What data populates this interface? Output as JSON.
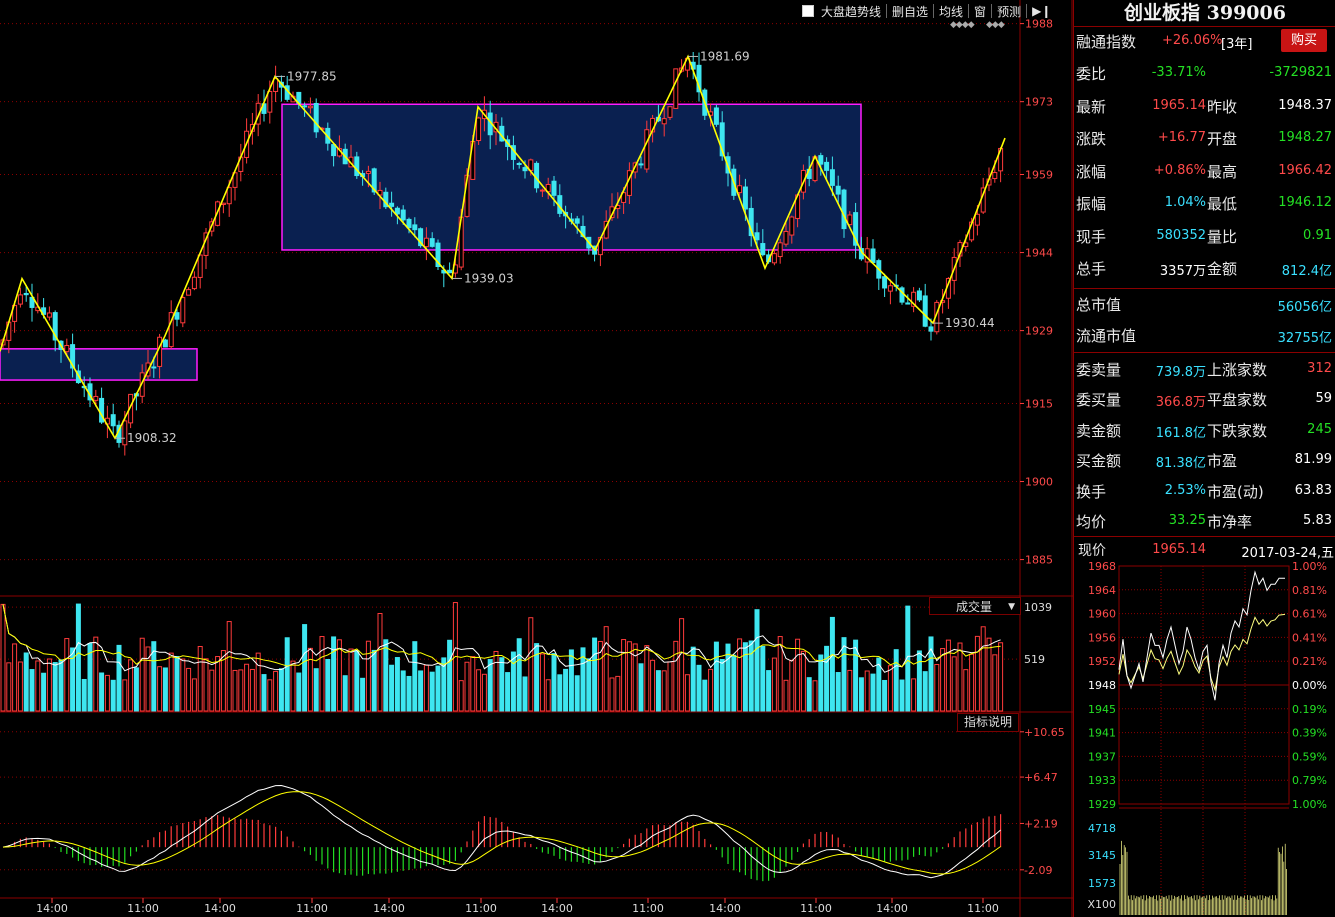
{
  "toolbar": {
    "items": [
      "大盘趋势线",
      "删自选",
      "均线",
      "窗",
      "预测"
    ],
    "nav_icon": "skip-arrow-icon"
  },
  "main_chart": {
    "price_axis": [
      "1988",
      "1973",
      "1959",
      "1944",
      "1929",
      "1915",
      "1900",
      "1885"
    ],
    "price_range": [
      1878,
      1991
    ],
    "pivot_labels": [
      {
        "text": "1977.85",
        "value": 1977.85
      },
      {
        "text": "1981.69",
        "value": 1981.69
      },
      {
        "text": "1939.03",
        "value": 1939.03
      },
      {
        "text": "1930.44",
        "value": 1930.44
      },
      {
        "text": "1908.32",
        "value": 1908.32
      }
    ],
    "colors": {
      "up": "#ff3b3b",
      "down": "#3ee6f0",
      "trend": "#ffff00",
      "box_border": "#ff1cff",
      "box_fill": "#0a2050",
      "grid": "#8b0000"
    }
  },
  "volume": {
    "selector_label": "成交量",
    "axis": [
      "1039",
      "519"
    ],
    "range": [
      0,
      1110
    ]
  },
  "indicator": {
    "button_label": "指标说明",
    "axis": [
      "+10.65",
      "+6.47",
      "+2.19",
      "-2.09"
    ],
    "range": [
      -4.6,
      12.2
    ]
  },
  "time_axis": [
    "14:00",
    "11:00",
    "14:00",
    "11:00",
    "14:00",
    "11:00",
    "14:00",
    "11:00",
    "14:00",
    "11:00",
    "14:00",
    "11:00"
  ],
  "quote_panel": {
    "title": "创业板指 399006",
    "margin_label": "融通指数",
    "margin_value": "+26.06%",
    "margin_period": "[3年]",
    "buy_button": "购买",
    "rows": [
      {
        "label": "委比",
        "v1": "-33.71%",
        "v2": "-3729821",
        "c1": "green",
        "c2": "green"
      },
      {
        "label": "最新",
        "v1": "1965.14",
        "label2": "昨收",
        "v2": "1948.37",
        "c1": "red",
        "c2": "white"
      },
      {
        "label": "涨跌",
        "v1": "+16.77",
        "label2": "开盘",
        "v2": "1948.27",
        "c1": "red",
        "c2": "green"
      },
      {
        "label": "涨幅",
        "v1": "+0.86%",
        "label2": "最高",
        "v2": "1966.42",
        "c1": "red",
        "c2": "red"
      },
      {
        "label": "振幅",
        "v1": "1.04%",
        "label2": "最低",
        "v2": "1946.12",
        "c1": "cyan",
        "c2": "green"
      },
      {
        "label": "现手",
        "v1": "580352",
        "label2": "量比",
        "v2": "0.91",
        "c1": "cyan",
        "c2": "green"
      },
      {
        "label": "总手",
        "v1": "3357万",
        "label2": "金额",
        "v2": "812.4亿",
        "c1": "white",
        "c2": "cyan"
      }
    ],
    "cap_rows": [
      {
        "label": "总市值",
        "value": "56056亿"
      },
      {
        "label": "流通市值",
        "value": "32755亿"
      }
    ],
    "order_rows": [
      {
        "label": "委卖量",
        "v1": "739.8万",
        "label2": "上涨家数",
        "v2": "312",
        "c1": "cyan",
        "c2": "red"
      },
      {
        "label": "委买量",
        "v1": "366.8万",
        "label2": "平盘家数",
        "v2": "59",
        "c1": "red",
        "c2": "white"
      },
      {
        "label": "卖金额",
        "v1": "161.8亿",
        "label2": "下跌家数",
        "v2": "245",
        "c1": "cyan",
        "c2": "green"
      },
      {
        "label": "买金额",
        "v1": "81.38亿",
        "label2": "市盈",
        "v2": "81.99",
        "c1": "cyan",
        "c2": "white"
      },
      {
        "label": "换手",
        "v1": "2.53%",
        "label2": "市盈(动)",
        "v2": "63.83",
        "c1": "cyan",
        "c2": "white"
      },
      {
        "label": "均价",
        "v1": "33.25",
        "label2": "市净率",
        "v2": "5.83",
        "c1": "green",
        "c2": "white"
      }
    ]
  },
  "mini_chart": {
    "price_label": "现价",
    "price_value": "1965.14",
    "date": "2017-03-24,五",
    "left_axis": [
      "1968",
      "1964",
      "1960",
      "1956",
      "1952",
      "1948",
      "1945",
      "1941",
      "1937",
      "1933",
      "1929"
    ],
    "right_axis": [
      "1.00%",
      "0.81%",
      "0.61%",
      "0.41%",
      "0.21%",
      "0.00%",
      "0.19%",
      "0.39%",
      "0.59%",
      "0.79%",
      "1.00%"
    ],
    "vol_axis": [
      "4718",
      "3145",
      "1573",
      "X100"
    ]
  }
}
